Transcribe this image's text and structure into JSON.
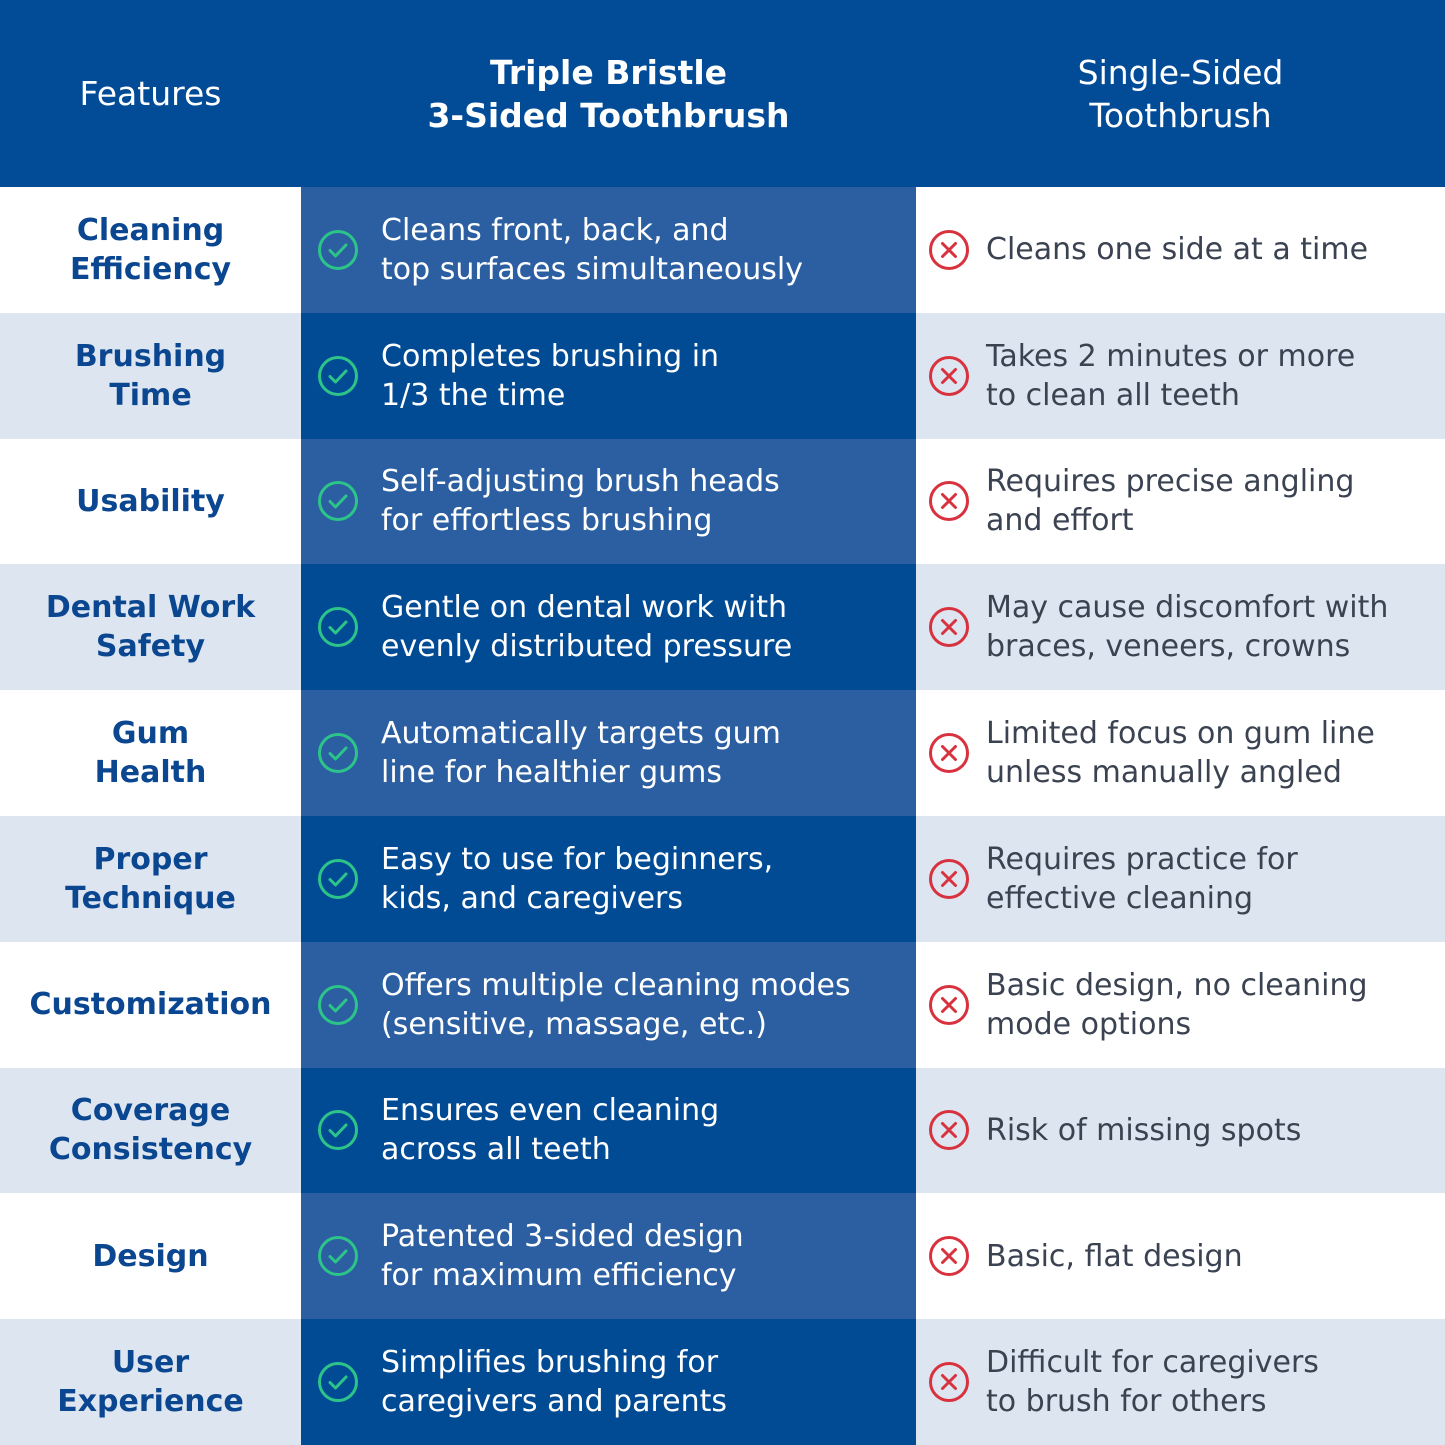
{
  "header": {
    "features": "Features",
    "ours": [
      "Triple Bristle",
      "3-Sided Toothbrush"
    ],
    "theirs": [
      "Single-Sided",
      "Toothbrush"
    ]
  },
  "colors": {
    "header": "#014b97",
    "check": "#2cc489",
    "cross": "#d8323f",
    "label": "#0b4690"
  },
  "icons": {
    "ours": "check-circle-icon",
    "theirs": "x-circle-icon"
  },
  "rows": [
    {
      "feature": [
        "Cleaning",
        "Efficiency"
      ],
      "ours": [
        "Cleans front, back, and",
        "top surfaces simultaneously"
      ],
      "theirs": [
        "Cleans one side at a time"
      ]
    },
    {
      "feature": [
        "Brushing",
        "Time"
      ],
      "ours": [
        "Completes brushing in",
        "1/3 the time"
      ],
      "theirs": [
        "Takes 2 minutes or more",
        "to clean all teeth"
      ]
    },
    {
      "feature": [
        "Usability"
      ],
      "ours": [
        "Self-adjusting brush heads",
        "for effortless brushing"
      ],
      "theirs": [
        "Requires precise angling",
        "and effort"
      ]
    },
    {
      "feature": [
        "Dental Work",
        "Safety"
      ],
      "ours": [
        "Gentle on dental work with",
        "evenly distributed pressure"
      ],
      "theirs": [
        "May cause discomfort with",
        "braces, veneers, crowns"
      ]
    },
    {
      "feature": [
        "Gum",
        "Health"
      ],
      "ours": [
        "Automatically targets gum",
        "line for healthier gums"
      ],
      "theirs": [
        "Limited focus on gum line",
        "unless manually angled"
      ]
    },
    {
      "feature": [
        "Proper",
        "Technique"
      ],
      "ours": [
        "Easy to use for beginners,",
        "kids, and caregivers"
      ],
      "theirs": [
        "Requires practice for",
        "effective cleaning"
      ]
    },
    {
      "feature": [
        "Customization"
      ],
      "ours": [
        "Offers multiple cleaning modes",
        "(sensitive, massage, etc.)"
      ],
      "theirs": [
        "Basic design, no cleaning",
        "mode options"
      ]
    },
    {
      "feature": [
        "Coverage",
        "Consistency"
      ],
      "ours": [
        "Ensures even cleaning",
        "across all teeth"
      ],
      "theirs": [
        "Risk of missing spots"
      ]
    },
    {
      "feature": [
        "Design"
      ],
      "ours": [
        "Patented 3-sided design",
        "for maximum efficiency"
      ],
      "theirs": [
        "Basic, flat design"
      ]
    },
    {
      "feature": [
        "User",
        "Experience"
      ],
      "ours": [
        "Simplifies brushing for",
        "caregivers and parents"
      ],
      "theirs": [
        "Difficult for caregivers",
        "to brush for others"
      ]
    }
  ]
}
